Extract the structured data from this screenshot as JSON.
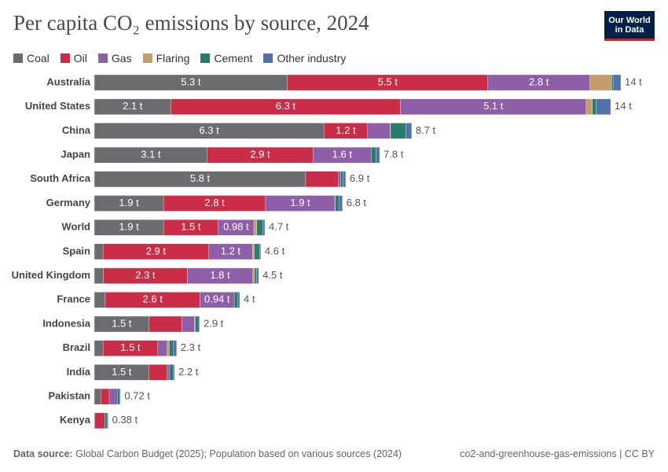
{
  "chart_data": {
    "type": "stacked-bar-horizontal",
    "title": "Per capita CO₂ emissions by source, 2024",
    "logo": [
      "Our World",
      "in Data"
    ],
    "categories": [
      "Australia",
      "United States",
      "China",
      "Japan",
      "South Africa",
      "Germany",
      "World",
      "Spain",
      "United Kingdom",
      "France",
      "Indonesia",
      "Brazil",
      "India",
      "Pakistan",
      "Kenya"
    ],
    "series": [
      {
        "name": "Coal",
        "color": "#6b6c70",
        "values": [
          5.3,
          2.1,
          6.3,
          3.1,
          5.8,
          1.9,
          1.9,
          0.24,
          0.25,
          0.3,
          1.5,
          0.24,
          1.5,
          0.18,
          0.01
        ],
        "value_labels": [
          "5.3 t",
          "2.1 t",
          "6.3 t",
          "3.1 t",
          "5.8 t",
          "1.9 t",
          "1.9 t",
          null,
          null,
          null,
          "1.5 t",
          null,
          "1.5 t",
          null,
          null
        ]
      },
      {
        "name": "Oil",
        "color": "#c92d47",
        "values": [
          5.5,
          6.3,
          1.2,
          2.9,
          0.9,
          2.8,
          1.5,
          2.9,
          2.3,
          2.6,
          0.9,
          1.5,
          0.5,
          0.23,
          0.28
        ],
        "value_labels": [
          "5.5 t",
          "6.3 t",
          "1.2 t",
          "2.9 t",
          null,
          "2.8 t",
          "1.5 t",
          "2.9 t",
          "2.3 t",
          "2.6 t",
          null,
          "1.5 t",
          null,
          null,
          null
        ]
      },
      {
        "name": "Gas",
        "color": "#8f5ea8",
        "values": [
          2.8,
          5.1,
          0.62,
          1.6,
          0.06,
          1.9,
          0.98,
          1.2,
          1.8,
          0.94,
          0.35,
          0.26,
          0.07,
          0.22,
          0
        ],
        "value_labels": [
          "2.8 t",
          "5.1 t",
          null,
          "1.6 t",
          null,
          "1.9 t",
          "0.98 t",
          "1.2 t",
          "1.8 t",
          "0.94 t",
          null,
          null,
          null,
          null,
          null
        ]
      },
      {
        "name": "Flaring",
        "color": "#c59c6c",
        "values": [
          0.6,
          0.17,
          0.01,
          0,
          0,
          0.01,
          0.08,
          0.05,
          0.05,
          0,
          0.02,
          0.06,
          0,
          0,
          0
        ]
      },
      {
        "name": "Cement",
        "color": "#2b7a6b",
        "values": [
          0.05,
          0.1,
          0.43,
          0.13,
          0.06,
          0.1,
          0.16,
          0.15,
          0.05,
          0.1,
          0.1,
          0.1,
          0.1,
          0.07,
          0.07
        ]
      },
      {
        "name": "Other industry",
        "color": "#5172a8",
        "values": [
          0.2,
          0.4,
          0.15,
          0.1,
          0.08,
          0.1,
          0.06,
          0.03,
          0.06,
          0.05,
          0.02,
          0.1,
          0.03,
          0.02,
          0.02
        ]
      }
    ],
    "totals": {
      "values": [
        14.45,
        14.17,
        8.71,
        7.83,
        6.9,
        6.81,
        4.68,
        4.57,
        4.51,
        3.99,
        2.89,
        2.26,
        2.2,
        0.72,
        0.38
      ],
      "value_labels": [
        "14 t",
        "14 t",
        "8.7 t",
        "7.8 t",
        "6.9 t",
        "6.8 t",
        "4.7 t",
        "4.6 t",
        "4.5 t",
        "4 t",
        "2.9 t",
        "2.3 t",
        "2.2 t",
        "0.72 t",
        "0.38 t"
      ]
    },
    "source_label": "Data source:",
    "source": "Global Carbon Budget (2025); Population based on various sources (2024)",
    "slug": "co2-and-greenhouse-gas-emissions | CC BY"
  }
}
